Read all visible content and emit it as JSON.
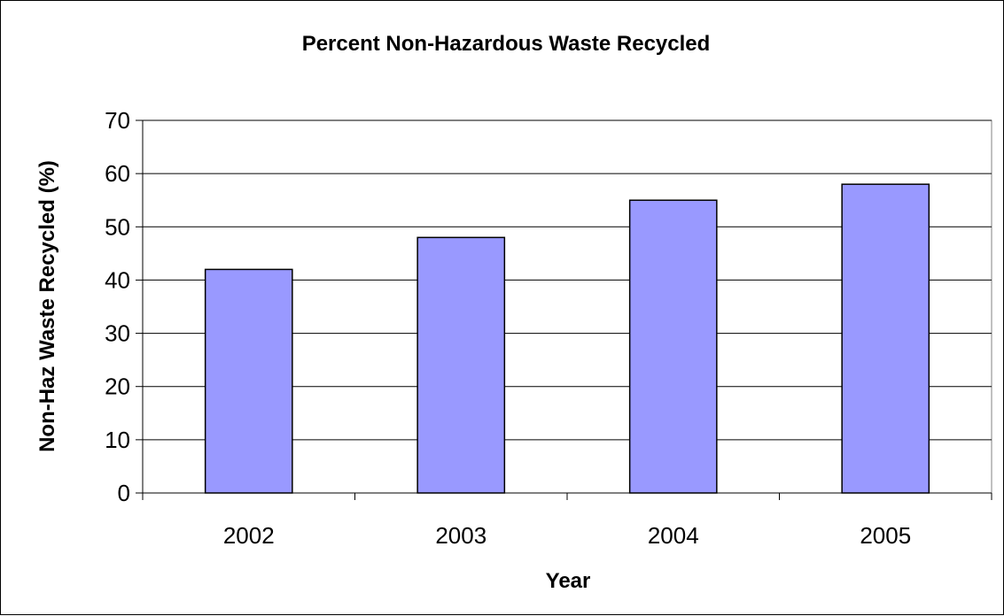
{
  "chart_data": {
    "type": "bar",
    "title": "Percent Non-Hazardous Waste Recycled",
    "xlabel": "Year",
    "ylabel": "Non-Haz Waste Recycled (%)",
    "categories": [
      "2002",
      "2003",
      "2004",
      "2005"
    ],
    "values": [
      42,
      48,
      55,
      58
    ],
    "ylim": [
      0,
      70
    ],
    "yticks": [
      0,
      10,
      20,
      30,
      40,
      50,
      60,
      70
    ],
    "grid": true,
    "legend": "none",
    "bar_color": "#9999ff",
    "bar_edge_color": "#000000"
  }
}
